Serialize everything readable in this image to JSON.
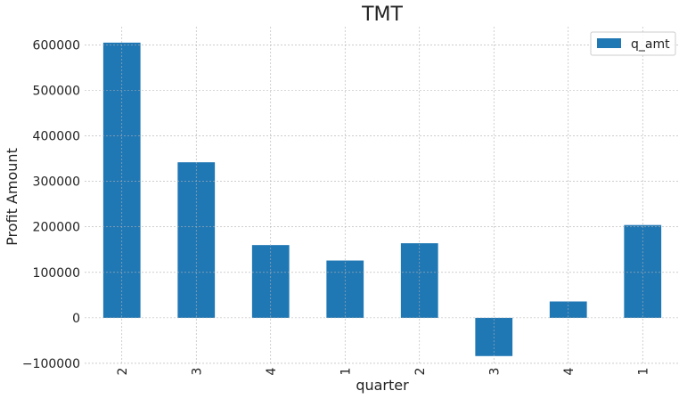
{
  "chart_data": {
    "type": "bar",
    "title": "TMT",
    "xlabel": "quarter",
    "ylabel": "Profit Amount",
    "categories": [
      "2",
      "3",
      "4",
      "1",
      "2",
      "3",
      "4",
      "1"
    ],
    "series": [
      {
        "name": "q_amt",
        "color": "#1f77b4",
        "values": [
          605000,
          342000,
          160000,
          126000,
          164000,
          -84000,
          36000,
          204000
        ]
      }
    ],
    "yticks": [
      -100000,
      0,
      100000,
      200000,
      300000,
      400000,
      500000,
      600000
    ],
    "ytick_labels": [
      "−100000",
      "0",
      "100000",
      "200000",
      "300000",
      "400000",
      "500000",
      "600000"
    ],
    "ylim": [
      -104000,
      640000
    ],
    "grid": true,
    "legend_position": "top-right"
  }
}
